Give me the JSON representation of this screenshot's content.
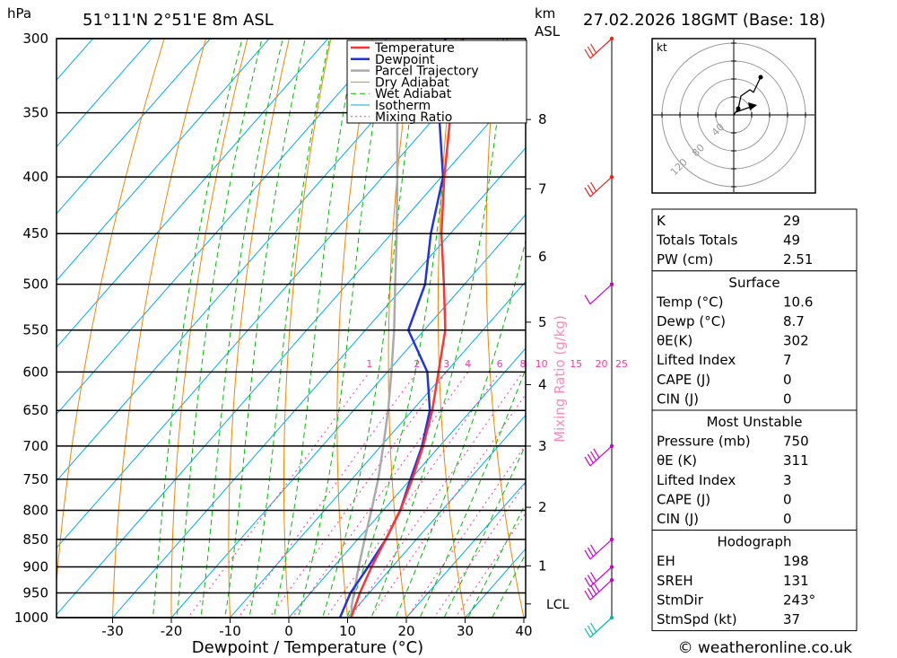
{
  "header": {
    "location": "51°11'N  2°51'E  8m  ASL",
    "datetime": "27.02.2026  18GMT  (Base: 18)",
    "pressure_unit": "hPa",
    "height_unit": "km",
    "height_ref": "ASL"
  },
  "credit": "© weatheronline.co.uk",
  "chart_data": {
    "type": "skew-t",
    "xlabel": "Dewpoint / Temperature (°C)",
    "ylabel": "hPa",
    "secondary_ylabel": "Mixing Ratio (g/kg)",
    "x_ticks": [
      -30,
      -20,
      -10,
      0,
      10,
      20,
      30,
      40
    ],
    "pressure_levels": [
      300,
      350,
      400,
      450,
      500,
      550,
      600,
      650,
      700,
      750,
      800,
      850,
      900,
      950,
      1000
    ],
    "height_ticks": [
      {
        "label": "8",
        "p": 355
      },
      {
        "label": "7",
        "p": 410
      },
      {
        "label": "6",
        "p": 472
      },
      {
        "label": "5",
        "p": 541
      },
      {
        "label": "4",
        "p": 616
      },
      {
        "label": "3",
        "p": 700
      },
      {
        "label": "2",
        "p": 795
      },
      {
        "label": "1",
        "p": 898
      }
    ],
    "lcl_label": "LCL",
    "lcl_pressure": 972,
    "mixing_ratio_labels": [
      "1",
      "2",
      "3",
      "4",
      "6",
      "8",
      "10",
      "15",
      "20",
      "25"
    ],
    "mixing_ratio_values": [
      1,
      2,
      3,
      4,
      6,
      8,
      10,
      15,
      20,
      25
    ],
    "legend": [
      "Temperature",
      "Dewpoint",
      "Parcel Trajectory",
      "Dry Adiabat",
      "Wet Adiabat",
      "Isotherm",
      "Mixing Ratio"
    ],
    "colors": {
      "temperature": "#ff3333",
      "dewpoint": "#2233dd",
      "parcel": "#aaaaaa",
      "dry_adiabat": "#ee8800",
      "wet_adiabat": "#00bb00",
      "isotherm": "#00aaee",
      "mixing_ratio": "#ff33aa",
      "wind_upper": "#ee2222",
      "wind_mid": "#cc00cc",
      "wind_low": "#00bbaa"
    },
    "temperature": [
      {
        "p": 1000,
        "t": 10.6
      },
      {
        "p": 950,
        "t": 8.4
      },
      {
        "p": 900,
        "t": 6.5
      },
      {
        "p": 850,
        "t": 4.8
      },
      {
        "p": 800,
        "t": 2.9
      },
      {
        "p": 750,
        "t": 0.3
      },
      {
        "p": 700,
        "t": -2.8
      },
      {
        "p": 650,
        "t": -6.6
      },
      {
        "p": 600,
        "t": -11.3
      },
      {
        "p": 550,
        "t": -16.4
      },
      {
        "p": 500,
        "t": -23.5
      },
      {
        "p": 450,
        "t": -31.5
      },
      {
        "p": 400,
        "t": -39.5
      },
      {
        "p": 350,
        "t": -48.0
      },
      {
        "p": 300,
        "t": -57.0
      }
    ],
    "dewpoint": [
      {
        "p": 1000,
        "t": 8.7
      },
      {
        "p": 950,
        "t": 6.8
      },
      {
        "p": 900,
        "t": 5.9
      },
      {
        "p": 850,
        "t": 4.8
      },
      {
        "p": 800,
        "t": 2.9
      },
      {
        "p": 750,
        "t": 0.0
      },
      {
        "p": 700,
        "t": -3.0
      },
      {
        "p": 650,
        "t": -7.0
      },
      {
        "p": 600,
        "t": -13.2
      },
      {
        "p": 550,
        "t": -22.7
      },
      {
        "p": 500,
        "t": -26.7
      },
      {
        "p": 450,
        "t": -33.3
      },
      {
        "p": 400,
        "t": -39.7
      },
      {
        "p": 350,
        "t": -50.0
      },
      {
        "p": 300,
        "t": -60.0
      }
    ],
    "parcel": [
      {
        "p": 1000,
        "t": 10.6
      },
      {
        "p": 972,
        "t": 8.7
      },
      {
        "p": 900,
        "t": 4.3
      },
      {
        "p": 850,
        "t": 1.2
      },
      {
        "p": 800,
        "t": -2.0
      },
      {
        "p": 750,
        "t": -5.5
      },
      {
        "p": 700,
        "t": -9.6
      },
      {
        "p": 650,
        "t": -14.1
      },
      {
        "p": 600,
        "t": -19.3
      },
      {
        "p": 550,
        "t": -25.1
      },
      {
        "p": 500,
        "t": -31.8
      },
      {
        "p": 450,
        "t": -39.1
      },
      {
        "p": 400,
        "t": -47.5
      },
      {
        "p": 350,
        "t": -57.1
      },
      {
        "p": 310,
        "t": -65.0
      }
    ],
    "wind_barbs": [
      {
        "p": 300,
        "flags": 3,
        "color": "wind_upper"
      },
      {
        "p": 400,
        "flags": 3,
        "color": "wind_upper"
      },
      {
        "p": 500,
        "flags": 1,
        "color": "wind_mid"
      },
      {
        "p": 700,
        "flags": 4,
        "color": "wind_mid"
      },
      {
        "p": 850,
        "flags": 3,
        "color": "wind_mid"
      },
      {
        "p": 900,
        "flags": 3,
        "color": "wind_mid"
      },
      {
        "p": 925,
        "flags": 4,
        "color": "wind_mid"
      },
      {
        "p": 1000,
        "flags": 3,
        "color": "wind_low"
      }
    ],
    "hodograph": {
      "unit_label": "kt",
      "ring_labels": [
        "40",
        "80",
        "120"
      ],
      "trace": [
        [
          0,
          0
        ],
        [
          5,
          5
        ],
        [
          8,
          15
        ],
        [
          18,
          20
        ],
        [
          22,
          18
        ],
        [
          30,
          30
        ]
      ]
    }
  },
  "indices": {
    "general": [
      {
        "label": "K",
        "value": "29"
      },
      {
        "label": "Totals Totals",
        "value": "49"
      },
      {
        "label": "PW (cm)",
        "value": "2.51"
      }
    ],
    "surface": {
      "title": "Surface",
      "rows": [
        {
          "label": "Temp (°C)",
          "value": "10.6"
        },
        {
          "label": "Dewp (°C)",
          "value": "8.7"
        },
        {
          "label": "θE(K)",
          "value": "302"
        },
        {
          "label": "Lifted Index",
          "value": "7"
        },
        {
          "label": "CAPE (J)",
          "value": "0"
        },
        {
          "label": "CIN (J)",
          "value": "0"
        }
      ]
    },
    "most_unstable": {
      "title": "Most Unstable",
      "rows": [
        {
          "label": "Pressure (mb)",
          "value": "750"
        },
        {
          "label": "θE (K)",
          "value": "311"
        },
        {
          "label": "Lifted Index",
          "value": "3"
        },
        {
          "label": "CAPE (J)",
          "value": "0"
        },
        {
          "label": "CIN (J)",
          "value": "0"
        }
      ]
    },
    "hodograph": {
      "title": "Hodograph",
      "rows": [
        {
          "label": "EH",
          "value": "198"
        },
        {
          "label": "SREH",
          "value": "131"
        },
        {
          "label": "StmDir",
          "value": "243°"
        },
        {
          "label": "StmSpd (kt)",
          "value": "37"
        }
      ]
    }
  }
}
